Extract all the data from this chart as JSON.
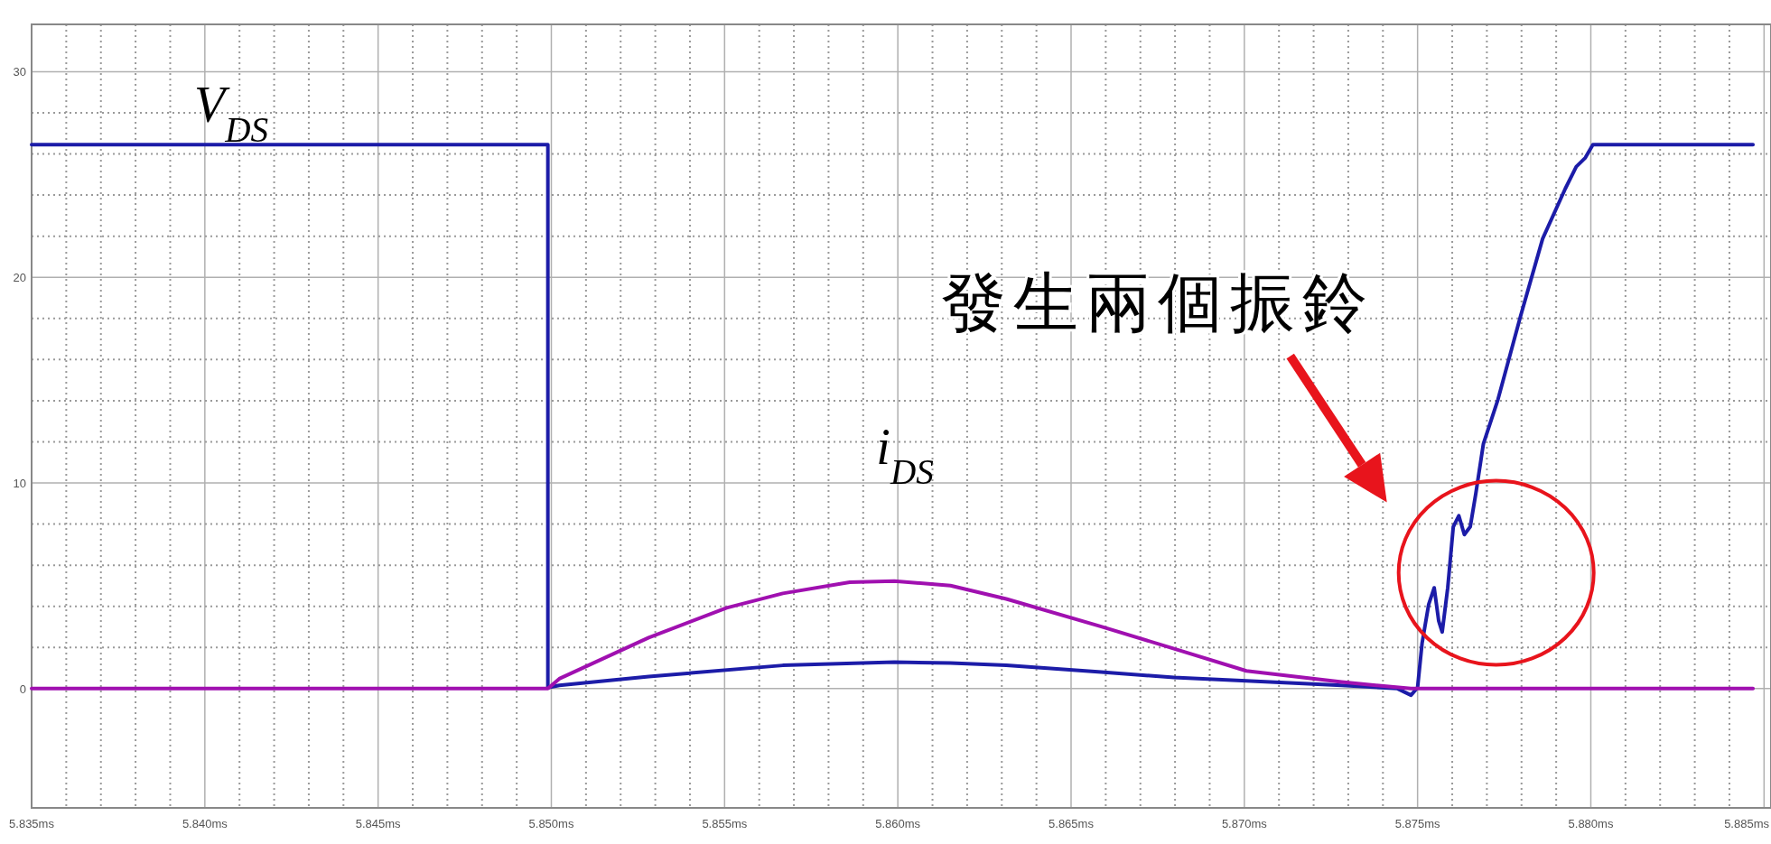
{
  "chart_data": {
    "type": "line",
    "xlim": [
      5.835,
      5.8852
    ],
    "ylim": [
      -5.8,
      32.3
    ],
    "xticks": [
      {
        "value": 5.835,
        "label": "5.835ms"
      },
      {
        "value": 5.84,
        "label": "5.840ms"
      },
      {
        "value": 5.845,
        "label": "5.845ms"
      },
      {
        "value": 5.85,
        "label": "5.850ms"
      },
      {
        "value": 5.855,
        "label": "5.855ms"
      },
      {
        "value": 5.86,
        "label": "5.860ms"
      },
      {
        "value": 5.865,
        "label": "5.865ms"
      },
      {
        "value": 5.87,
        "label": "5.870ms"
      },
      {
        "value": 5.875,
        "label": "5.875ms"
      },
      {
        "value": 5.88,
        "label": "5.880ms"
      },
      {
        "value": 5.885,
        "label": "5.885ms"
      }
    ],
    "yticks": [
      0,
      10,
      20,
      30
    ],
    "grid": true,
    "series": [
      {
        "name": "V$_{DS}$",
        "color": "#1c1ca8",
        "x": [
          5.835,
          5.8499,
          5.8499,
          5.8499,
          5.85023,
          5.85281,
          5.85668,
          5.8599,
          5.86152,
          5.86313,
          5.86587,
          5.86797,
          5.87006,
          5.87281,
          5.87442,
          5.87481,
          5.875,
          5.87513,
          5.87532,
          5.87548,
          5.87561,
          5.87571,
          5.87587,
          5.87603,
          5.87619,
          5.87635,
          5.87652,
          5.87668,
          5.8769,
          5.87732,
          5.87797,
          5.87861,
          5.87926,
          5.87958,
          5.87984,
          5.88006,
          5.88468
        ],
        "values": [
          26.45,
          26.45,
          26.0,
          0.05,
          0.16,
          0.59,
          1.13,
          1.29,
          1.24,
          1.13,
          0.81,
          0.54,
          0.38,
          0.16,
          0,
          -0.32,
          0.05,
          2.21,
          4.09,
          4.9,
          3.29,
          2.75,
          4.9,
          7.87,
          8.41,
          7.49,
          7.87,
          9.48,
          11.91,
          14.06,
          18.1,
          21.88,
          24.3,
          25.38,
          25.81,
          26.45,
          26.45
        ]
      },
      {
        "name": "i$_{DS}$",
        "color": "#a010b0",
        "x": [
          5.835,
          5.8499,
          5.85023,
          5.85281,
          5.85506,
          5.85668,
          5.85861,
          5.8599,
          5.86152,
          5.86313,
          5.86587,
          5.86797,
          5.87006,
          5.87281,
          5.87481,
          5.88468
        ],
        "values": [
          0,
          0,
          0.48,
          2.48,
          3.93,
          4.63,
          5.17,
          5.23,
          5.01,
          4.36,
          3.02,
          1.94,
          0.86,
          0.32,
          0,
          0
        ]
      }
    ],
    "annotations": [
      "發生兩個振鈴"
    ]
  }
}
